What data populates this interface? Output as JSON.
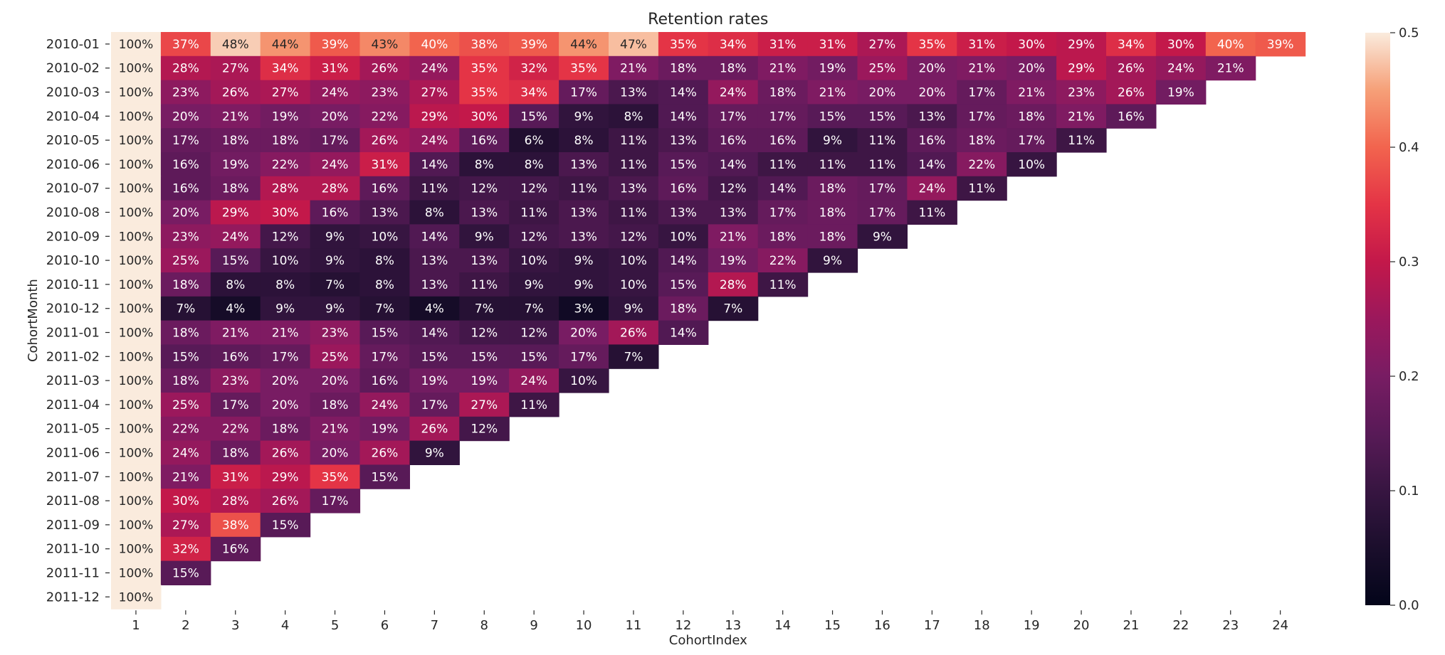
{
  "chart_data": {
    "type": "heatmap",
    "title": "Retention rates",
    "xlabel": "CohortIndex",
    "ylabel": "CohortMonth",
    "x_labels": [
      "1",
      "2",
      "3",
      "4",
      "5",
      "6",
      "7",
      "8",
      "9",
      "10",
      "11",
      "12",
      "13",
      "14",
      "15",
      "16",
      "17",
      "18",
      "19",
      "20",
      "21",
      "22",
      "23",
      "24"
    ],
    "y_labels": [
      "2010-01",
      "2010-02",
      "2010-03",
      "2010-04",
      "2010-05",
      "2010-06",
      "2010-07",
      "2010-08",
      "2010-09",
      "2010-10",
      "2010-11",
      "2010-12",
      "2011-01",
      "2011-02",
      "2011-03",
      "2011-04",
      "2011-05",
      "2011-06",
      "2011-07",
      "2011-08",
      "2011-09",
      "2011-10",
      "2011-11",
      "2011-12"
    ],
    "values": [
      [
        100,
        37,
        48,
        44,
        39,
        43,
        40,
        38,
        39,
        44,
        47,
        35,
        34,
        31,
        31,
        27,
        35,
        31,
        30,
        29,
        34,
        30,
        40,
        39
      ],
      [
        100,
        28,
        27,
        34,
        31,
        26,
        24,
        35,
        32,
        35,
        21,
        18,
        18,
        21,
        19,
        25,
        20,
        21,
        20,
        29,
        26,
        24,
        21
      ],
      [
        100,
        23,
        26,
        27,
        24,
        23,
        27,
        35,
        34,
        17,
        13,
        14,
        24,
        18,
        21,
        20,
        20,
        17,
        21,
        23,
        26,
        19
      ],
      [
        100,
        20,
        21,
        19,
        20,
        22,
        29,
        30,
        15,
        9,
        8,
        14,
        17,
        17,
        15,
        15,
        13,
        17,
        18,
        21,
        16
      ],
      [
        100,
        17,
        18,
        18,
        17,
        26,
        24,
        16,
        6,
        8,
        11,
        13,
        16,
        16,
        9,
        11,
        16,
        18,
        17,
        11
      ],
      [
        100,
        16,
        19,
        22,
        24,
        31,
        14,
        8,
        8,
        13,
        11,
        15,
        14,
        11,
        11,
        11,
        14,
        22,
        10
      ],
      [
        100,
        16,
        18,
        28,
        28,
        16,
        11,
        12,
        12,
        11,
        13,
        16,
        12,
        14,
        18,
        17,
        24,
        11
      ],
      [
        100,
        20,
        29,
        30,
        16,
        13,
        8,
        13,
        11,
        13,
        11,
        13,
        13,
        17,
        18,
        17,
        11
      ],
      [
        100,
        23,
        24,
        12,
        9,
        10,
        14,
        9,
        12,
        13,
        12,
        10,
        21,
        18,
        18,
        9
      ],
      [
        100,
        25,
        15,
        10,
        9,
        8,
        13,
        13,
        10,
        9,
        10,
        14,
        19,
        22,
        9
      ],
      [
        100,
        18,
        8,
        8,
        7,
        8,
        13,
        11,
        9,
        9,
        10,
        15,
        28,
        11
      ],
      [
        100,
        7,
        4,
        9,
        9,
        7,
        4,
        7,
        7,
        3,
        9,
        18,
        7
      ],
      [
        100,
        18,
        21,
        21,
        23,
        15,
        14,
        12,
        12,
        20,
        26,
        14
      ],
      [
        100,
        15,
        16,
        17,
        25,
        17,
        15,
        15,
        15,
        17,
        7
      ],
      [
        100,
        18,
        23,
        20,
        20,
        16,
        19,
        19,
        24,
        10
      ],
      [
        100,
        25,
        17,
        20,
        18,
        24,
        17,
        27,
        11
      ],
      [
        100,
        22,
        22,
        18,
        21,
        19,
        26,
        12
      ],
      [
        100,
        24,
        18,
        26,
        20,
        26,
        9
      ],
      [
        100,
        21,
        31,
        29,
        35,
        15
      ],
      [
        100,
        30,
        28,
        26,
        17
      ],
      [
        100,
        27,
        38,
        15
      ],
      [
        100,
        32,
        16
      ],
      [
        100,
        15
      ],
      [
        100
      ]
    ],
    "value_format": "percent",
    "color_scale": {
      "vmin": 0.0,
      "vmax": 0.5,
      "colormap": "rocket",
      "ticks": [
        "0.0",
        "0.1",
        "0.2",
        "0.3",
        "0.4",
        "0.5"
      ]
    },
    "grid": false,
    "colorbar_position": "right"
  }
}
